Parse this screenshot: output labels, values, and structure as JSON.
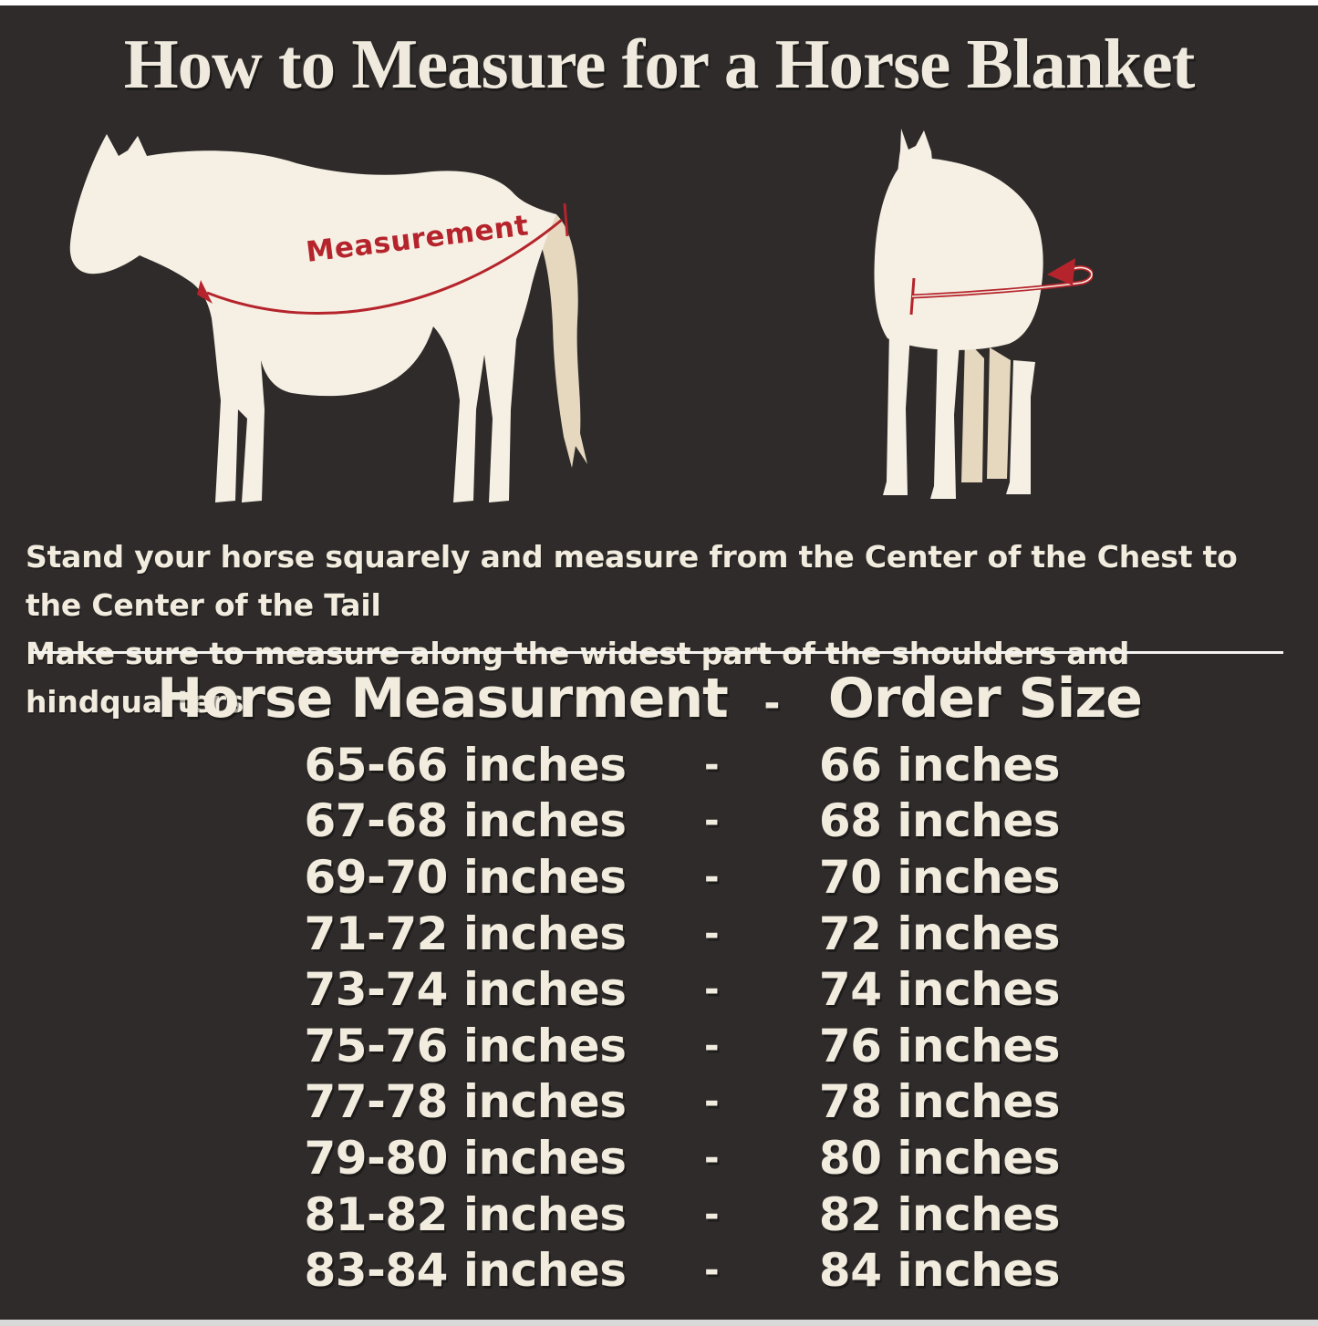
{
  "page": {
    "title": "How to Measure for a Horse Blanket",
    "background_color": "#2e2b2a",
    "text_color": "#f2ecdf",
    "accent_red": "#b5242c",
    "horse_body_color": "#f6f0e4",
    "horse_shade_color": "#e5d8bf"
  },
  "diagram": {
    "measurement_label": "Measurement",
    "side_horse_illustration": "horse-side-view-silhouette",
    "front_horse_illustration": "horse-front-view-silhouette"
  },
  "instructions": {
    "line1": "Stand your horse squarely and measure from the Center of the Chest to the Center of the Tail",
    "line2": "Make sure to measure along the widest part of the shoulders and hindquarters."
  },
  "size_table": {
    "header": {
      "measurement_col": "Horse Measurment",
      "separator": "-",
      "size_col": "Order Size"
    },
    "rows": [
      {
        "measurement": "65-66 inches",
        "separator": "-",
        "size": "66 inches"
      },
      {
        "measurement": "67-68 inches",
        "separator": "-",
        "size": "68 inches"
      },
      {
        "measurement": "69-70 inches",
        "separator": "-",
        "size": "70 inches"
      },
      {
        "measurement": "71-72 inches",
        "separator": "-",
        "size": "72 inches"
      },
      {
        "measurement": "73-74 inches",
        "separator": "-",
        "size": "74 inches"
      },
      {
        "measurement": "75-76 inches",
        "separator": "-",
        "size": "76 inches"
      },
      {
        "measurement": "77-78 inches",
        "separator": "-",
        "size": "78 inches"
      },
      {
        "measurement": "79-80 inches",
        "separator": "-",
        "size": "80 inches"
      },
      {
        "measurement": "81-82 inches",
        "separator": "-",
        "size": "82 inches"
      },
      {
        "measurement": "83-84 inches",
        "separator": "-",
        "size": "84 inches"
      }
    ]
  }
}
